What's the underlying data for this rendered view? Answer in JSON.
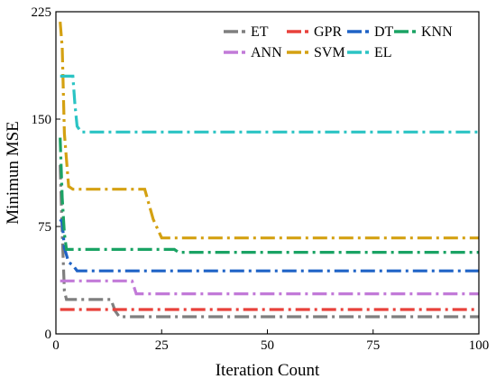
{
  "chart_data": {
    "type": "line",
    "xlabel": "Iteration Count",
    "ylabel": "Minimun MSE",
    "xlim": [
      0,
      100
    ],
    "ylim": [
      0,
      225
    ],
    "xticks": [
      0,
      25,
      50,
      75,
      100
    ],
    "yticks": [
      0,
      75,
      150,
      225
    ],
    "x_tick_labels": [
      "0",
      "25",
      "50",
      "75",
      "100"
    ],
    "y_tick_labels": [
      "0",
      "75",
      "150",
      "225"
    ],
    "grid": false,
    "legend_position": "top-right",
    "series": [
      {
        "name": "ET",
        "color": "#7f7f7f",
        "x": [
          1,
          1.5,
          2,
          2.5,
          13,
          14,
          15,
          100
        ],
        "y": [
          118,
          70,
          30,
          24,
          24,
          16,
          12,
          12
        ]
      },
      {
        "name": "GPR",
        "color": "#e8413b",
        "x": [
          1,
          100
        ],
        "y": [
          17,
          17
        ]
      },
      {
        "name": "DT",
        "color": "#1f63c6",
        "x": [
          1,
          1.5,
          2,
          3,
          4,
          5,
          100
        ],
        "y": [
          80,
          78,
          60,
          50,
          48,
          44,
          44
        ]
      },
      {
        "name": "KNN",
        "color": "#1aa364",
        "x": [
          1,
          1.5,
          2,
          2.5,
          28,
          29,
          100
        ],
        "y": [
          137,
          95,
          70,
          59,
          59,
          57,
          57
        ]
      },
      {
        "name": "ANN",
        "color": "#c27ad8",
        "x": [
          1,
          18,
          19,
          100
        ],
        "y": [
          37,
          37,
          28,
          28
        ]
      },
      {
        "name": "SVM",
        "color": "#d4a112",
        "x": [
          1,
          1.5,
          2,
          3,
          4,
          21,
          23,
          25,
          100
        ],
        "y": [
          218,
          200,
          140,
          103,
          101,
          101,
          80,
          67,
          67
        ]
      },
      {
        "name": "EL",
        "color": "#2bc4c4",
        "x": [
          1,
          4,
          4.5,
          5,
          6,
          100
        ],
        "y": [
          180,
          180,
          160,
          145,
          141,
          141
        ]
      }
    ]
  }
}
